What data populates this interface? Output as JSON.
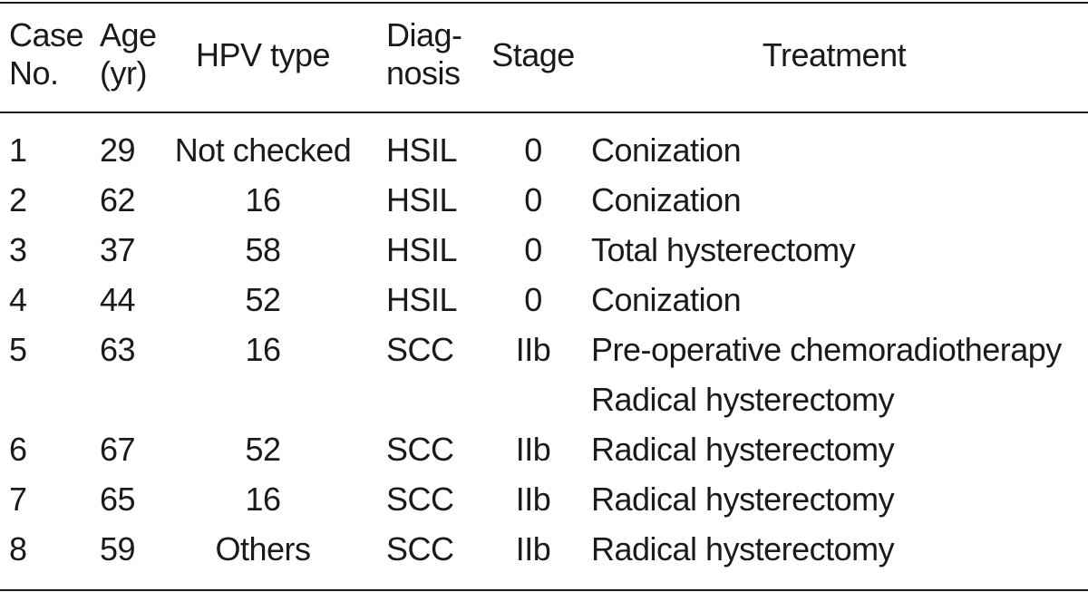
{
  "headers": {
    "case_line1": "Case",
    "case_line2": "No.",
    "age_line1": "Age",
    "age_line2": "(yr)",
    "hpv": "HPV type",
    "diag_line1": "Diag-",
    "diag_line2": "nosis",
    "stage": "Stage",
    "treatment": "Treatment"
  },
  "rows": [
    {
      "case": "1",
      "age": "29",
      "hpv": "Not checked",
      "diagnosis": "HSIL",
      "stage": "0",
      "treatment": [
        "Conization"
      ]
    },
    {
      "case": "2",
      "age": "62",
      "hpv": "16",
      "diagnosis": "HSIL",
      "stage": "0",
      "treatment": [
        "Conization"
      ]
    },
    {
      "case": "3",
      "age": "37",
      "hpv": "58",
      "diagnosis": "HSIL",
      "stage": "0",
      "treatment": [
        "Total hysterectomy"
      ]
    },
    {
      "case": "4",
      "age": "44",
      "hpv": "52",
      "diagnosis": "HSIL",
      "stage": "0",
      "treatment": [
        "Conization"
      ]
    },
    {
      "case": "5",
      "age": "63",
      "hpv": "16",
      "diagnosis": "SCC",
      "stage": "IIb",
      "treatment": [
        "Pre-operative chemoradiotherapy",
        "Radical hysterectomy"
      ]
    },
    {
      "case": "6",
      "age": "67",
      "hpv": "52",
      "diagnosis": "SCC",
      "stage": "IIb",
      "treatment": [
        "Radical hysterectomy"
      ]
    },
    {
      "case": "7",
      "age": "65",
      "hpv": "16",
      "diagnosis": "SCC",
      "stage": "IIb",
      "treatment": [
        "Radical hysterectomy"
      ]
    },
    {
      "case": "8",
      "age": "59",
      "hpv": "Others",
      "diagnosis": "SCC",
      "stage": "IIb",
      "treatment": [
        "Radical hysterectomy"
      ]
    }
  ]
}
